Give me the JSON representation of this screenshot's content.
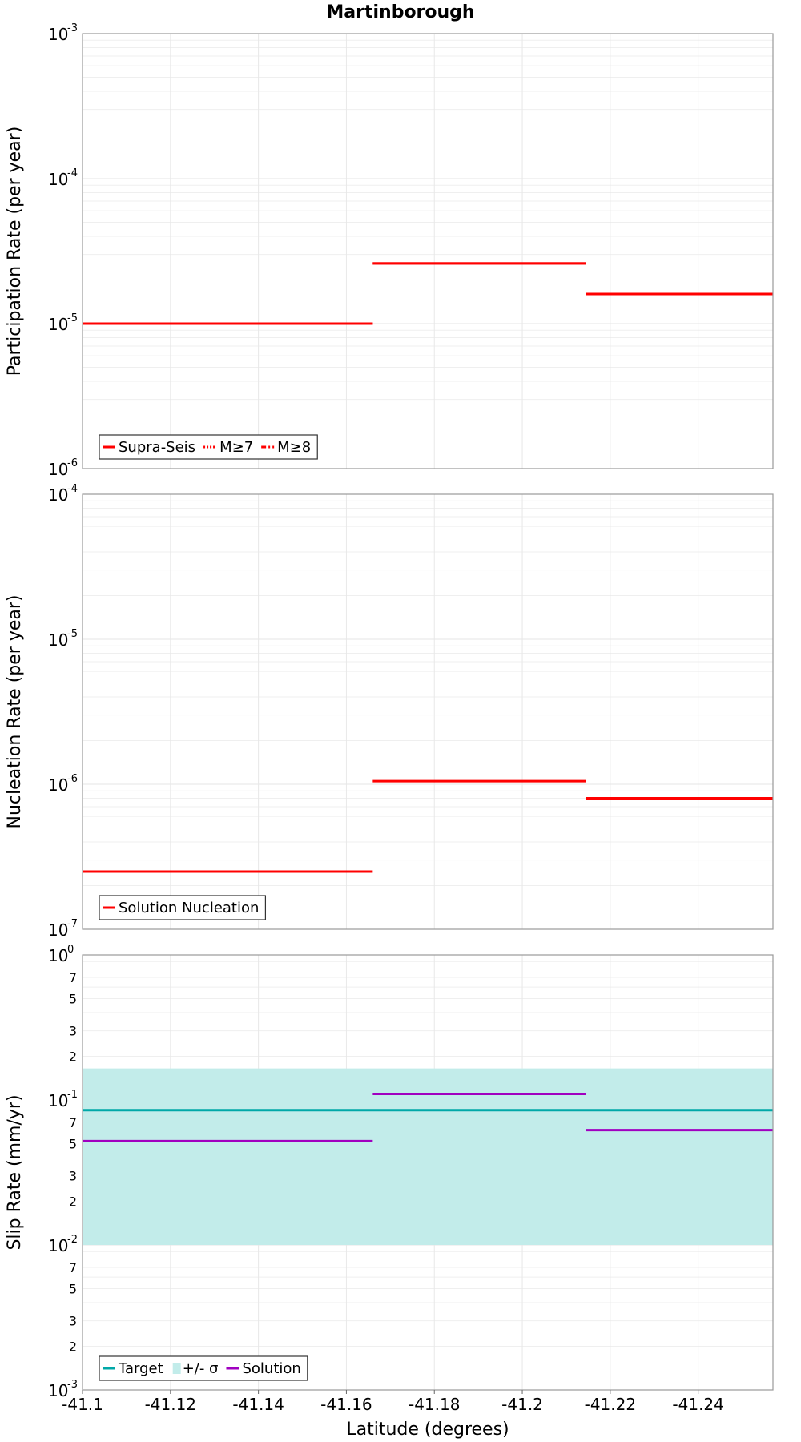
{
  "title": "Martinborough",
  "chart_data": [
    {
      "type": "line",
      "panel": "participation",
      "ylabel": "Participation Rate (per year)",
      "yscale": "log",
      "ylim": [
        1e-06,
        0.001
      ],
      "major_ticks": [
        {
          "base": "10",
          "exp": "-6"
        },
        {
          "base": "10",
          "exp": "-5"
        },
        {
          "base": "10",
          "exp": "-4"
        },
        {
          "base": "10",
          "exp": "-3"
        }
      ],
      "legend": [
        {
          "label": "Supra-Seis",
          "color": "#ff0000",
          "style": "solid"
        },
        {
          "label": "M≥7",
          "color": "#ff0000",
          "style": "dotted"
        },
        {
          "label": "M≥8",
          "color": "#ff0000",
          "style": "dashdot"
        }
      ],
      "series": [
        {
          "name": "Supra-Seis",
          "color": "#ff0000",
          "segments": [
            {
              "x0": -41.1,
              "x1": -41.166,
              "y": 1e-05
            },
            {
              "x0": -41.166,
              "x1": -41.2145,
              "y": 2.6e-05
            },
            {
              "x0": -41.2145,
              "x1": -41.257,
              "y": 1.6e-05
            }
          ]
        },
        {
          "name": "M≥7",
          "color": "#ff0000",
          "segments": [
            {
              "x0": -41.1,
              "x1": -41.166,
              "y": 1e-05
            },
            {
              "x0": -41.166,
              "x1": -41.2145,
              "y": 2.6e-05
            },
            {
              "x0": -41.2145,
              "x1": -41.257,
              "y": 1.6e-05
            }
          ]
        }
      ]
    },
    {
      "type": "line",
      "panel": "nucleation",
      "ylabel": "Nucleation Rate (per year)",
      "yscale": "log",
      "ylim": [
        1e-07,
        0.0001
      ],
      "major_ticks": [
        {
          "base": "10",
          "exp": "-7"
        },
        {
          "base": "10",
          "exp": "-6"
        },
        {
          "base": "10",
          "exp": "-5"
        },
        {
          "base": "10",
          "exp": "-4"
        }
      ],
      "legend": [
        {
          "label": "Solution Nucleation",
          "color": "#ff0000",
          "style": "solid"
        }
      ],
      "series": [
        {
          "name": "Solution Nucleation",
          "color": "#ff0000",
          "segments": [
            {
              "x0": -41.1,
              "x1": -41.166,
              "y": 2.5e-07
            },
            {
              "x0": -41.166,
              "x1": -41.2145,
              "y": 1.05e-06
            },
            {
              "x0": -41.2145,
              "x1": -41.257,
              "y": 8e-07
            }
          ]
        }
      ]
    },
    {
      "type": "line",
      "panel": "slip",
      "ylabel": "Slip Rate (mm/yr)",
      "yscale": "log",
      "ylim": [
        0.001,
        1.0
      ],
      "major_ticks": [
        {
          "base": "10",
          "exp": "-3"
        },
        {
          "base": "10",
          "exp": "-2"
        },
        {
          "base": "10",
          "exp": "-1"
        },
        {
          "base": "10",
          "exp": "0"
        }
      ],
      "minor_tick_labels": [
        "2",
        "3",
        "5",
        "7"
      ],
      "legend": [
        {
          "label": "Target",
          "color": "#00a8a8",
          "style": "solid"
        },
        {
          "label": "+/- σ",
          "color": "#c2ecea",
          "style": "band"
        },
        {
          "label": "Solution",
          "color": "#a000c0",
          "style": "solid"
        }
      ],
      "band": {
        "name": "+/- σ",
        "color": "#c2ecea",
        "x0": -41.1,
        "x1": -41.257,
        "y0": 0.01,
        "y1": 0.165
      },
      "series": [
        {
          "name": "Target",
          "color": "#00a8a8",
          "segments": [
            {
              "x0": -41.1,
              "x1": -41.257,
              "y": 0.085
            }
          ]
        },
        {
          "name": "Solution",
          "color": "#a000c0",
          "segments": [
            {
              "x0": -41.1,
              "x1": -41.166,
              "y": 0.052
            },
            {
              "x0": -41.166,
              "x1": -41.2145,
              "y": 0.11
            },
            {
              "x0": -41.2145,
              "x1": -41.257,
              "y": 0.062
            }
          ]
        }
      ]
    }
  ],
  "xaxis": {
    "label": "Latitude (degrees)",
    "xlim": [
      -41.1,
      -41.257
    ],
    "ticks": [
      {
        "value": -41.1,
        "label": "-41.1"
      },
      {
        "value": -41.12,
        "label": "-41.12"
      },
      {
        "value": -41.14,
        "label": "-41.14"
      },
      {
        "value": -41.16,
        "label": "-41.16"
      },
      {
        "value": -41.18,
        "label": "-41.18"
      },
      {
        "value": -41.2,
        "label": "-41.2"
      },
      {
        "value": -41.22,
        "label": "-41.22"
      },
      {
        "value": -41.24,
        "label": "-41.24"
      }
    ]
  }
}
